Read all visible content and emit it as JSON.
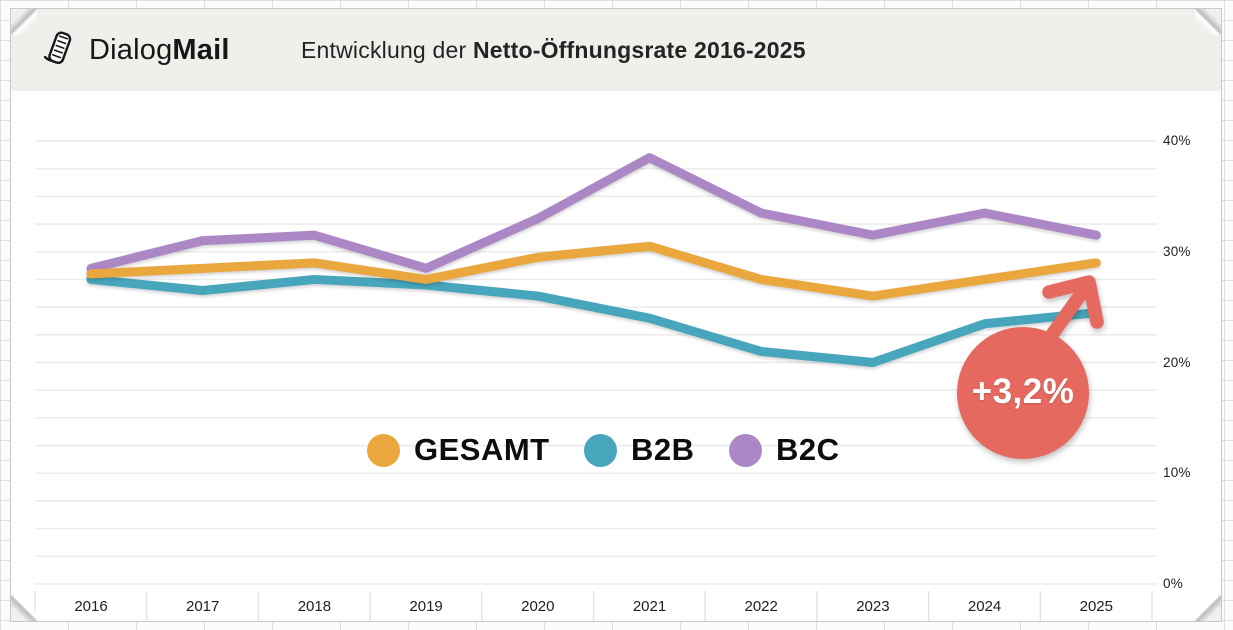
{
  "header": {
    "logo": {
      "brand_regular": "Dialog",
      "brand_bold": "Mail",
      "icon": "rolled-newspaper-icon"
    },
    "title_regular": "Entwicklung der ",
    "title_bold": "Netto-Öffnungsrate 2016-2025"
  },
  "chart_data": {
    "type": "line",
    "title": "Entwicklung der Netto-Öffnungsrate 2016-2025",
    "x": [
      "2016",
      "2017",
      "2018",
      "2019",
      "2020",
      "2021",
      "2022",
      "2023",
      "2024",
      "2025"
    ],
    "series": [
      {
        "name": "GESAMT",
        "color": "#e9a73e",
        "values": [
          28,
          28.5,
          29,
          27.5,
          29.5,
          30.5,
          27.5,
          26,
          27.5,
          29
        ]
      },
      {
        "name": "B2B",
        "color": "#47a6bb",
        "values": [
          27.5,
          26.5,
          27.5,
          27,
          26,
          24,
          21,
          20,
          23.5,
          24.5
        ]
      },
      {
        "name": "B2C",
        "color": "#ac87c5",
        "values": [
          28.5,
          31,
          31.5,
          28.5,
          33,
          38.5,
          33.5,
          31.5,
          33.5,
          31.5
        ]
      }
    ],
    "ylim": [
      0,
      40
    ],
    "yticks": [
      {
        "label": "40%",
        "value": 40
      },
      {
        "label": "30%",
        "value": 30
      },
      {
        "label": "20%",
        "value": 20
      },
      {
        "label": "10%",
        "value": 10
      },
      {
        "label": "0%",
        "value": 0
      }
    ],
    "grid": {
      "horizontal_step_percent": 2.5,
      "vertical": false
    },
    "legend_position": "bottom-center",
    "annotation": {
      "text": "+3,2%",
      "color": "#e6695f",
      "target": "GESAMT 2025 endpoint",
      "shape": "circle-with-up-right-arrow"
    }
  },
  "colors": {
    "header_background": "#f0efec",
    "chart_background": "#ffffff",
    "gridline": "#ececec"
  }
}
